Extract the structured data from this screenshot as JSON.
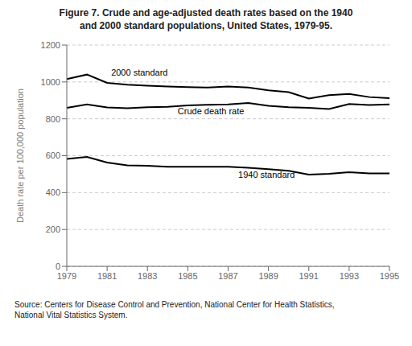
{
  "chart_data": {
    "type": "line",
    "title": "Figure 7. Crude and age-adjusted death rates based on the 1940\nand 2000 standard populations, United States, 1979-95.",
    "x": [
      1979,
      1980,
      1981,
      1982,
      1983,
      1984,
      1985,
      1986,
      1987,
      1988,
      1989,
      1990,
      1991,
      1992,
      1993,
      1994,
      1995
    ],
    "series": [
      {
        "name": "2000 standard",
        "color": "#000000",
        "values": [
          1015,
          1040,
          995,
          985,
          980,
          975,
          972,
          970,
          975,
          970,
          955,
          945,
          910,
          928,
          935,
          918,
          912
        ]
      },
      {
        "name": "Crude death rate",
        "color": "#000000",
        "values": [
          860,
          878,
          862,
          858,
          863,
          865,
          873,
          876,
          878,
          886,
          871,
          863,
          860,
          853,
          880,
          875,
          878
        ]
      },
      {
        "name": "1940 standard",
        "color": "#000000",
        "values": [
          583,
          593,
          563,
          548,
          545,
          540,
          540,
          540,
          540,
          535,
          527,
          518,
          498,
          502,
          510,
          504,
          504
        ]
      }
    ],
    "y_label": "Death rate per 100,000 population",
    "ylim": [
      0,
      1200
    ],
    "yticks": [
      0,
      200,
      400,
      600,
      800,
      1000,
      1200
    ],
    "xlim": [
      1979,
      1995
    ],
    "xticks": [
      1979,
      1981,
      1983,
      1985,
      1987,
      1989,
      1991,
      1993,
      1995
    ],
    "grid": true,
    "annotations": [
      {
        "text": "2000 standard",
        "x": 1981.2,
        "y": 1020
      },
      {
        "text": "Crude death rate",
        "x": 1984.5,
        "y": 813
      },
      {
        "text": "1940 standard",
        "x": 1987.5,
        "y": 528
      }
    ],
    "source": "Source:  Centers for Disease Control and Prevention, National Center for Health Statistics,\nNational Vital Statistics System."
  }
}
